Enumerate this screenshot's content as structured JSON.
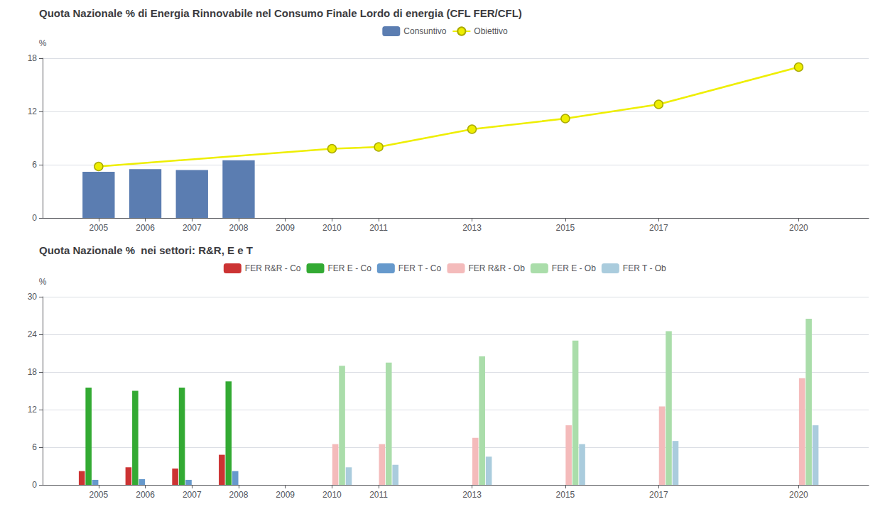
{
  "chart_data": [
    {
      "type": "bar",
      "title": "Quota Nazionale % di Energia Rinnovabile nel Consumo Finale Lordo di energia (CFL FER/CFL)",
      "ylabel": "%",
      "series": [
        {
          "name": "Consuntivo",
          "type": "bar",
          "color": "#5B7DB1",
          "x": [
            2005,
            2006,
            2007,
            2008
          ],
          "values": [
            5.2,
            5.5,
            5.4,
            6.5
          ]
        },
        {
          "name": "Obiettivo",
          "type": "line",
          "marker": "circle",
          "color": "#EEEE00",
          "x": [
            2005,
            2010,
            2011,
            2013,
            2015,
            2017,
            2020
          ],
          "values": [
            5.8,
            7.8,
            8.0,
            10.0,
            11.2,
            12.8,
            17.0
          ]
        }
      ],
      "xlim": [
        2003.8,
        2021.5
      ],
      "xticks": [
        2005,
        2006,
        2007,
        2008,
        2009,
        2010,
        2011,
        2013,
        2015,
        2017,
        2020
      ],
      "ylim": [
        0,
        18
      ],
      "yticks": [
        0,
        6,
        12,
        18
      ],
      "grid": true,
      "legend": "top"
    },
    {
      "type": "bar",
      "title": "Quota Nazionale %  nei settori: R&R, E e T",
      "ylabel": "%",
      "x": [
        2005,
        2006,
        2007,
        2008,
        2009,
        2010,
        2011,
        2013,
        2015,
        2017,
        2020
      ],
      "series": [
        {
          "name": "FER R&R - Co",
          "color": "#CC3333",
          "values": [
            2.2,
            2.8,
            2.6,
            4.8,
            0,
            0,
            0,
            0,
            0,
            0,
            0
          ]
        },
        {
          "name": "FER E - Co",
          "color": "#33AA33",
          "values": [
            15.5,
            15.0,
            15.5,
            16.5,
            0,
            0,
            0,
            0,
            0,
            0,
            0
          ]
        },
        {
          "name": "FER T - Co",
          "color": "#6699CC",
          "values": [
            0.8,
            0.9,
            0.8,
            2.2,
            0,
            0,
            0,
            0,
            0,
            0,
            0
          ]
        },
        {
          "name": "FER R&R - Ob",
          "color": "#F4BBBB",
          "values": [
            0,
            0,
            0,
            0,
            0,
            6.5,
            6.5,
            7.5,
            9.5,
            12.5,
            17.0
          ]
        },
        {
          "name": "FER E - Ob",
          "color": "#AADDAA",
          "values": [
            0,
            0,
            0,
            0,
            0,
            19.0,
            19.5,
            20.5,
            23.0,
            24.5,
            26.5
          ]
        },
        {
          "name": "FER T - Ob",
          "color": "#AACCDD",
          "values": [
            0,
            0,
            0,
            0,
            0,
            2.8,
            3.2,
            4.5,
            6.5,
            7.0,
            9.5
          ]
        }
      ],
      "xlim": [
        2003.8,
        2021.5
      ],
      "xticks": [
        2005,
        2006,
        2007,
        2008,
        2009,
        2010,
        2011,
        2013,
        2015,
        2017,
        2020
      ],
      "ylim": [
        0,
        30
      ],
      "yticks": [
        0,
        6,
        12,
        18,
        24,
        30
      ],
      "grid": true,
      "legend": "top"
    }
  ]
}
